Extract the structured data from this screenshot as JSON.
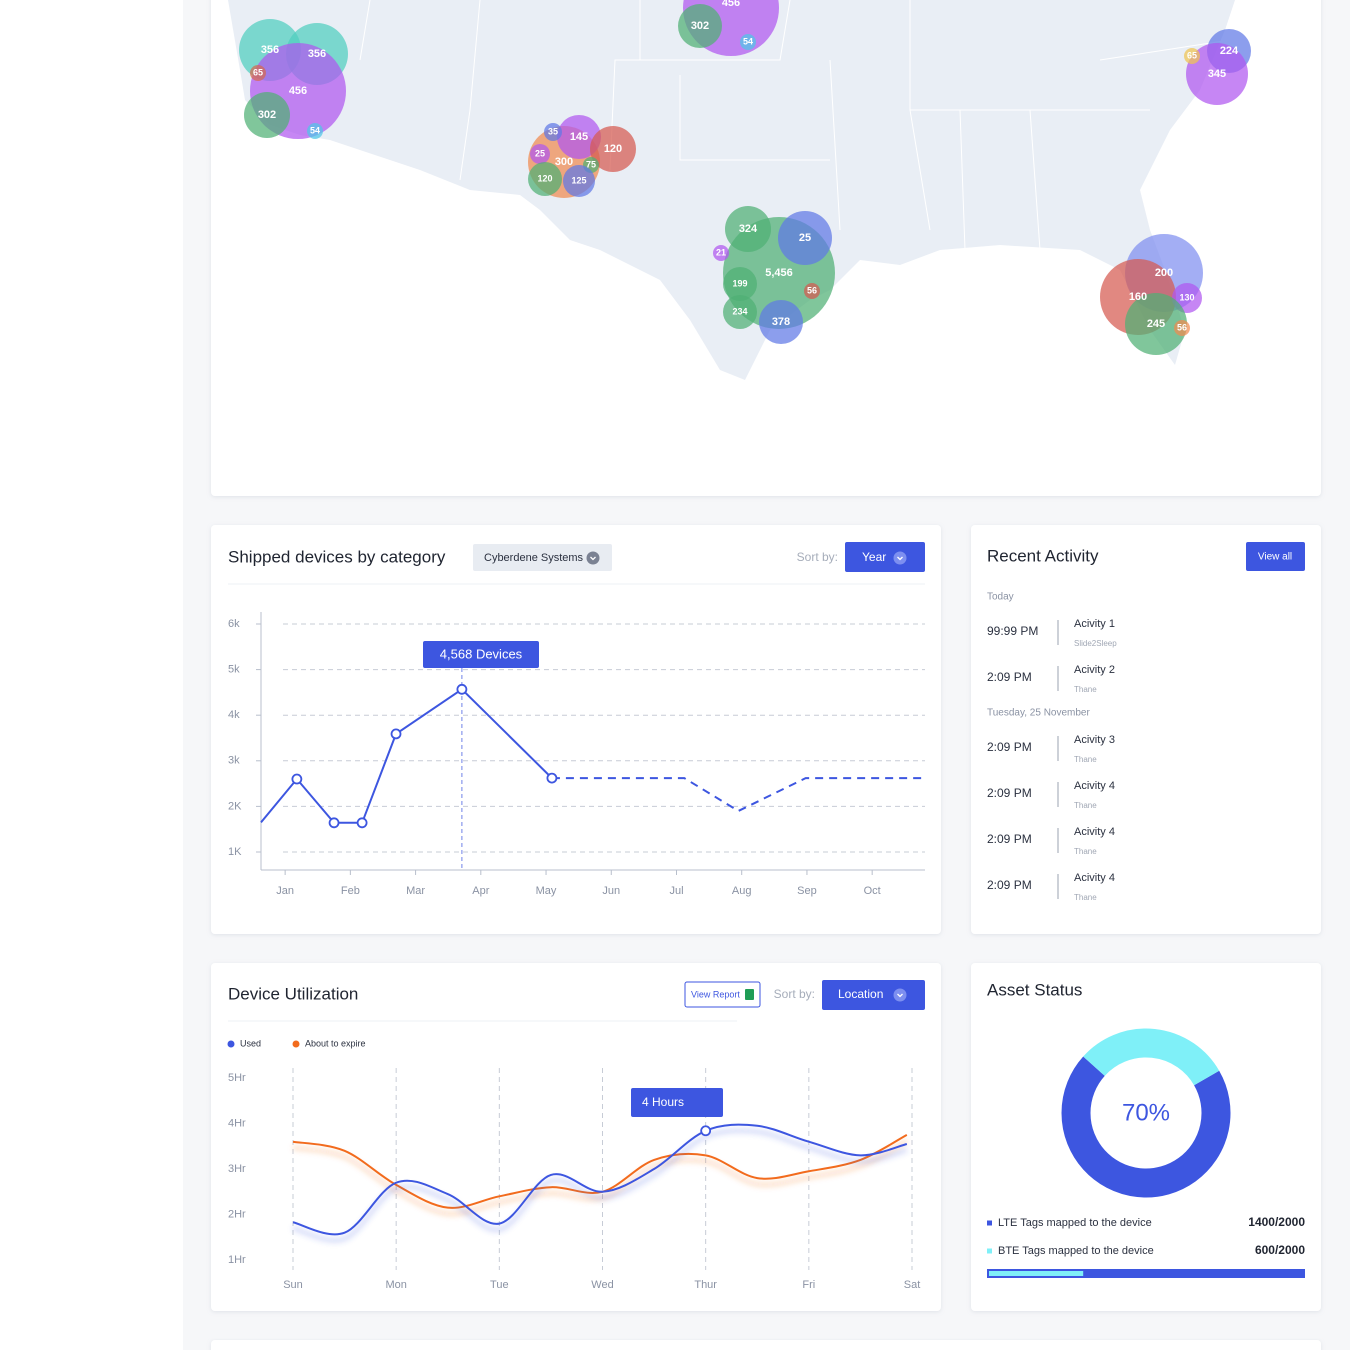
{
  "map": {
    "bubbles": [
      {
        "label": "356",
        "color": "#4fcfbf"
      },
      {
        "label": "356",
        "color": "#4fcfbf"
      },
      {
        "label": "456",
        "color": "#b058f0"
      },
      {
        "label": "302",
        "color": "#4fb074"
      },
      {
        "label": "65",
        "color": "#d6694f"
      },
      {
        "label": "54",
        "color": "#4fc6e8"
      },
      {
        "label": "456",
        "color": "#b058f0"
      },
      {
        "label": "302",
        "color": "#4fb074"
      },
      {
        "label": "54",
        "color": "#4fc6e8"
      },
      {
        "label": "300",
        "color": "#f08a50"
      },
      {
        "label": "145",
        "color": "#b058f0"
      },
      {
        "label": "120",
        "color": "#d65a50"
      },
      {
        "label": "35",
        "color": "#5f78e6"
      },
      {
        "label": "25",
        "color": "#b058f0"
      },
      {
        "label": "75",
        "color": "#4fb074"
      },
      {
        "label": "120",
        "color": "#4fb074"
      },
      {
        "label": "125",
        "color": "#5f78e6"
      },
      {
        "label": "5,456",
        "color": "#4fb074"
      },
      {
        "label": "25",
        "color": "#5f78e6"
      },
      {
        "label": "324",
        "color": "#4fb074"
      },
      {
        "label": "21",
        "color": "#b058f0"
      },
      {
        "label": "199",
        "color": "#4fb074"
      },
      {
        "label": "56",
        "color": "#d65a50"
      },
      {
        "label": "234",
        "color": "#4fb074"
      },
      {
        "label": "378",
        "color": "#5f78e6"
      },
      {
        "label": "200",
        "color": "#7f8ff0"
      },
      {
        "label": "160",
        "color": "#d65a50"
      },
      {
        "label": "130",
        "color": "#b058f0"
      },
      {
        "label": "245",
        "color": "#4fb074"
      },
      {
        "label": "56",
        "color": "#f08a50"
      },
      {
        "label": "224",
        "color": "#5f78e6"
      },
      {
        "label": "345",
        "color": "#b058f0"
      },
      {
        "label": "65",
        "color": "#f0c552"
      }
    ]
  },
  "chart_data": [
    {
      "type": "line",
      "title": "Shipped devices by category",
      "dropdown": "Cyberdene Systems",
      "sort_label": "Sort by:",
      "sort_value": "Year",
      "xlim": [
        -0.37,
        9.81
      ],
      "xticks": [
        {
          "value": 0,
          "label": "Jan"
        },
        {
          "value": 1,
          "label": "Feb"
        },
        {
          "value": 2,
          "label": "Mar"
        },
        {
          "value": 3,
          "label": "Apr"
        },
        {
          "value": 4,
          "label": "May"
        },
        {
          "value": 5,
          "label": "Jun"
        },
        {
          "value": 6,
          "label": "Jul"
        },
        {
          "value": 7,
          "label": "Aug"
        },
        {
          "value": 8,
          "label": "Sep"
        },
        {
          "value": 9,
          "label": "Oct"
        }
      ],
      "ylim": [
        605,
        6263
      ],
      "yticks": [
        {
          "value": 6000,
          "label": "6k"
        },
        {
          "value": 5000,
          "label": "5k"
        },
        {
          "value": 4000,
          "label": "4k"
        },
        {
          "value": 3000,
          "label": "3k"
        },
        {
          "value": 2000,
          "label": "2K"
        },
        {
          "value": 1000,
          "label": "1K"
        }
      ],
      "grid": true,
      "series": [
        {
          "color": "#3d56e0",
          "style": "solid",
          "x": [
            -0.37,
            0.18,
            0.75,
            1.18,
            1.7,
            2.71,
            4.09
          ],
          "values": [
            1650,
            2600,
            1640,
            1640,
            3590,
            4568,
            2620
          ]
        },
        {
          "color": "#3d56e0",
          "style": "dashed",
          "x": [
            4.09,
            6.12,
            6.95,
            7.98,
            9.77
          ],
          "values": [
            2620,
            2620,
            1900,
            2620,
            2620
          ]
        }
      ],
      "annotation": "4,568 Devices"
    },
    {
      "type": "curve",
      "title": "Device Utilization",
      "report_button": "View Report",
      "sort_label": "Sort by:",
      "sort_value": "Location",
      "xlim": [
        0,
        6
      ],
      "xticks": [
        {
          "value": 0,
          "label": "Sun"
        },
        {
          "value": 1,
          "label": "Mon"
        },
        {
          "value": 2,
          "label": "Tue"
        },
        {
          "value": 3,
          "label": "Wed"
        },
        {
          "value": 4,
          "label": "Thur"
        },
        {
          "value": 5,
          "label": "Fri"
        },
        {
          "value": 6,
          "label": "Sat"
        }
      ],
      "ylim": [
        0.78,
        5.22
      ],
      "yticks": [
        {
          "value": 5,
          "label": "5Hr"
        },
        {
          "value": 4,
          "label": "4Hr"
        },
        {
          "value": 3,
          "label": "3Hr"
        },
        {
          "value": 2,
          "label": "2Hr"
        },
        {
          "value": 1,
          "label": "1Hr"
        }
      ],
      "series": [
        {
          "name": "Used",
          "color": "#3d56e0",
          "x": [
            0,
            0.5,
            1,
            1.5,
            2,
            2.5,
            3,
            3.5,
            4,
            4.5,
            5,
            5.5,
            5.95
          ],
          "values": [
            1.83,
            1.6,
            2.7,
            2.45,
            1.8,
            2.87,
            2.5,
            3.0,
            3.84,
            3.95,
            3.6,
            3.3,
            3.55
          ]
        },
        {
          "name": "About to expire",
          "color": "#f26b1d",
          "x": [
            0,
            0.5,
            1,
            1.5,
            2,
            2.5,
            3,
            3.5,
            4,
            4.5,
            5,
            5.5,
            5.95
          ],
          "values": [
            3.6,
            3.4,
            2.65,
            2.15,
            2.4,
            2.6,
            2.5,
            3.2,
            3.3,
            2.8,
            2.95,
            3.2,
            3.75
          ]
        }
      ],
      "annotation": "4 Hours"
    },
    {
      "type": "donut",
      "title": "Asset Status",
      "center_label": "70%",
      "series": [
        {
          "name": "LTE Tags mapped to the device",
          "color": "#3d56e0",
          "value": 1400,
          "value_label": "1400/2000"
        },
        {
          "name": "BTE Tags mapped to the device",
          "color": "#7ff0f8",
          "value": 600,
          "value_label": "600/2000"
        }
      ]
    }
  ],
  "recent_activity": {
    "title": "Recent Activity",
    "button": "View all",
    "groups": [
      {
        "label": "Today",
        "items": [
          {
            "time": "99:99 PM",
            "name": "Acivity 1",
            "sub": "Slide2Sleep"
          },
          {
            "time": "2:09 PM",
            "name": "Acivity 2",
            "sub": "Thane"
          }
        ]
      },
      {
        "label": "Tuesday, 25 November",
        "items": [
          {
            "time": "2:09 PM",
            "name": "Acivity 3",
            "sub": "Thane"
          },
          {
            "time": "2:09 PM",
            "name": "Acivity 4",
            "sub": "Thane"
          },
          {
            "time": "2:09 PM",
            "name": "Acivity 4",
            "sub": "Thane"
          },
          {
            "time": "2:09 PM",
            "name": "Acivity 4",
            "sub": "Thane"
          }
        ]
      }
    ]
  }
}
